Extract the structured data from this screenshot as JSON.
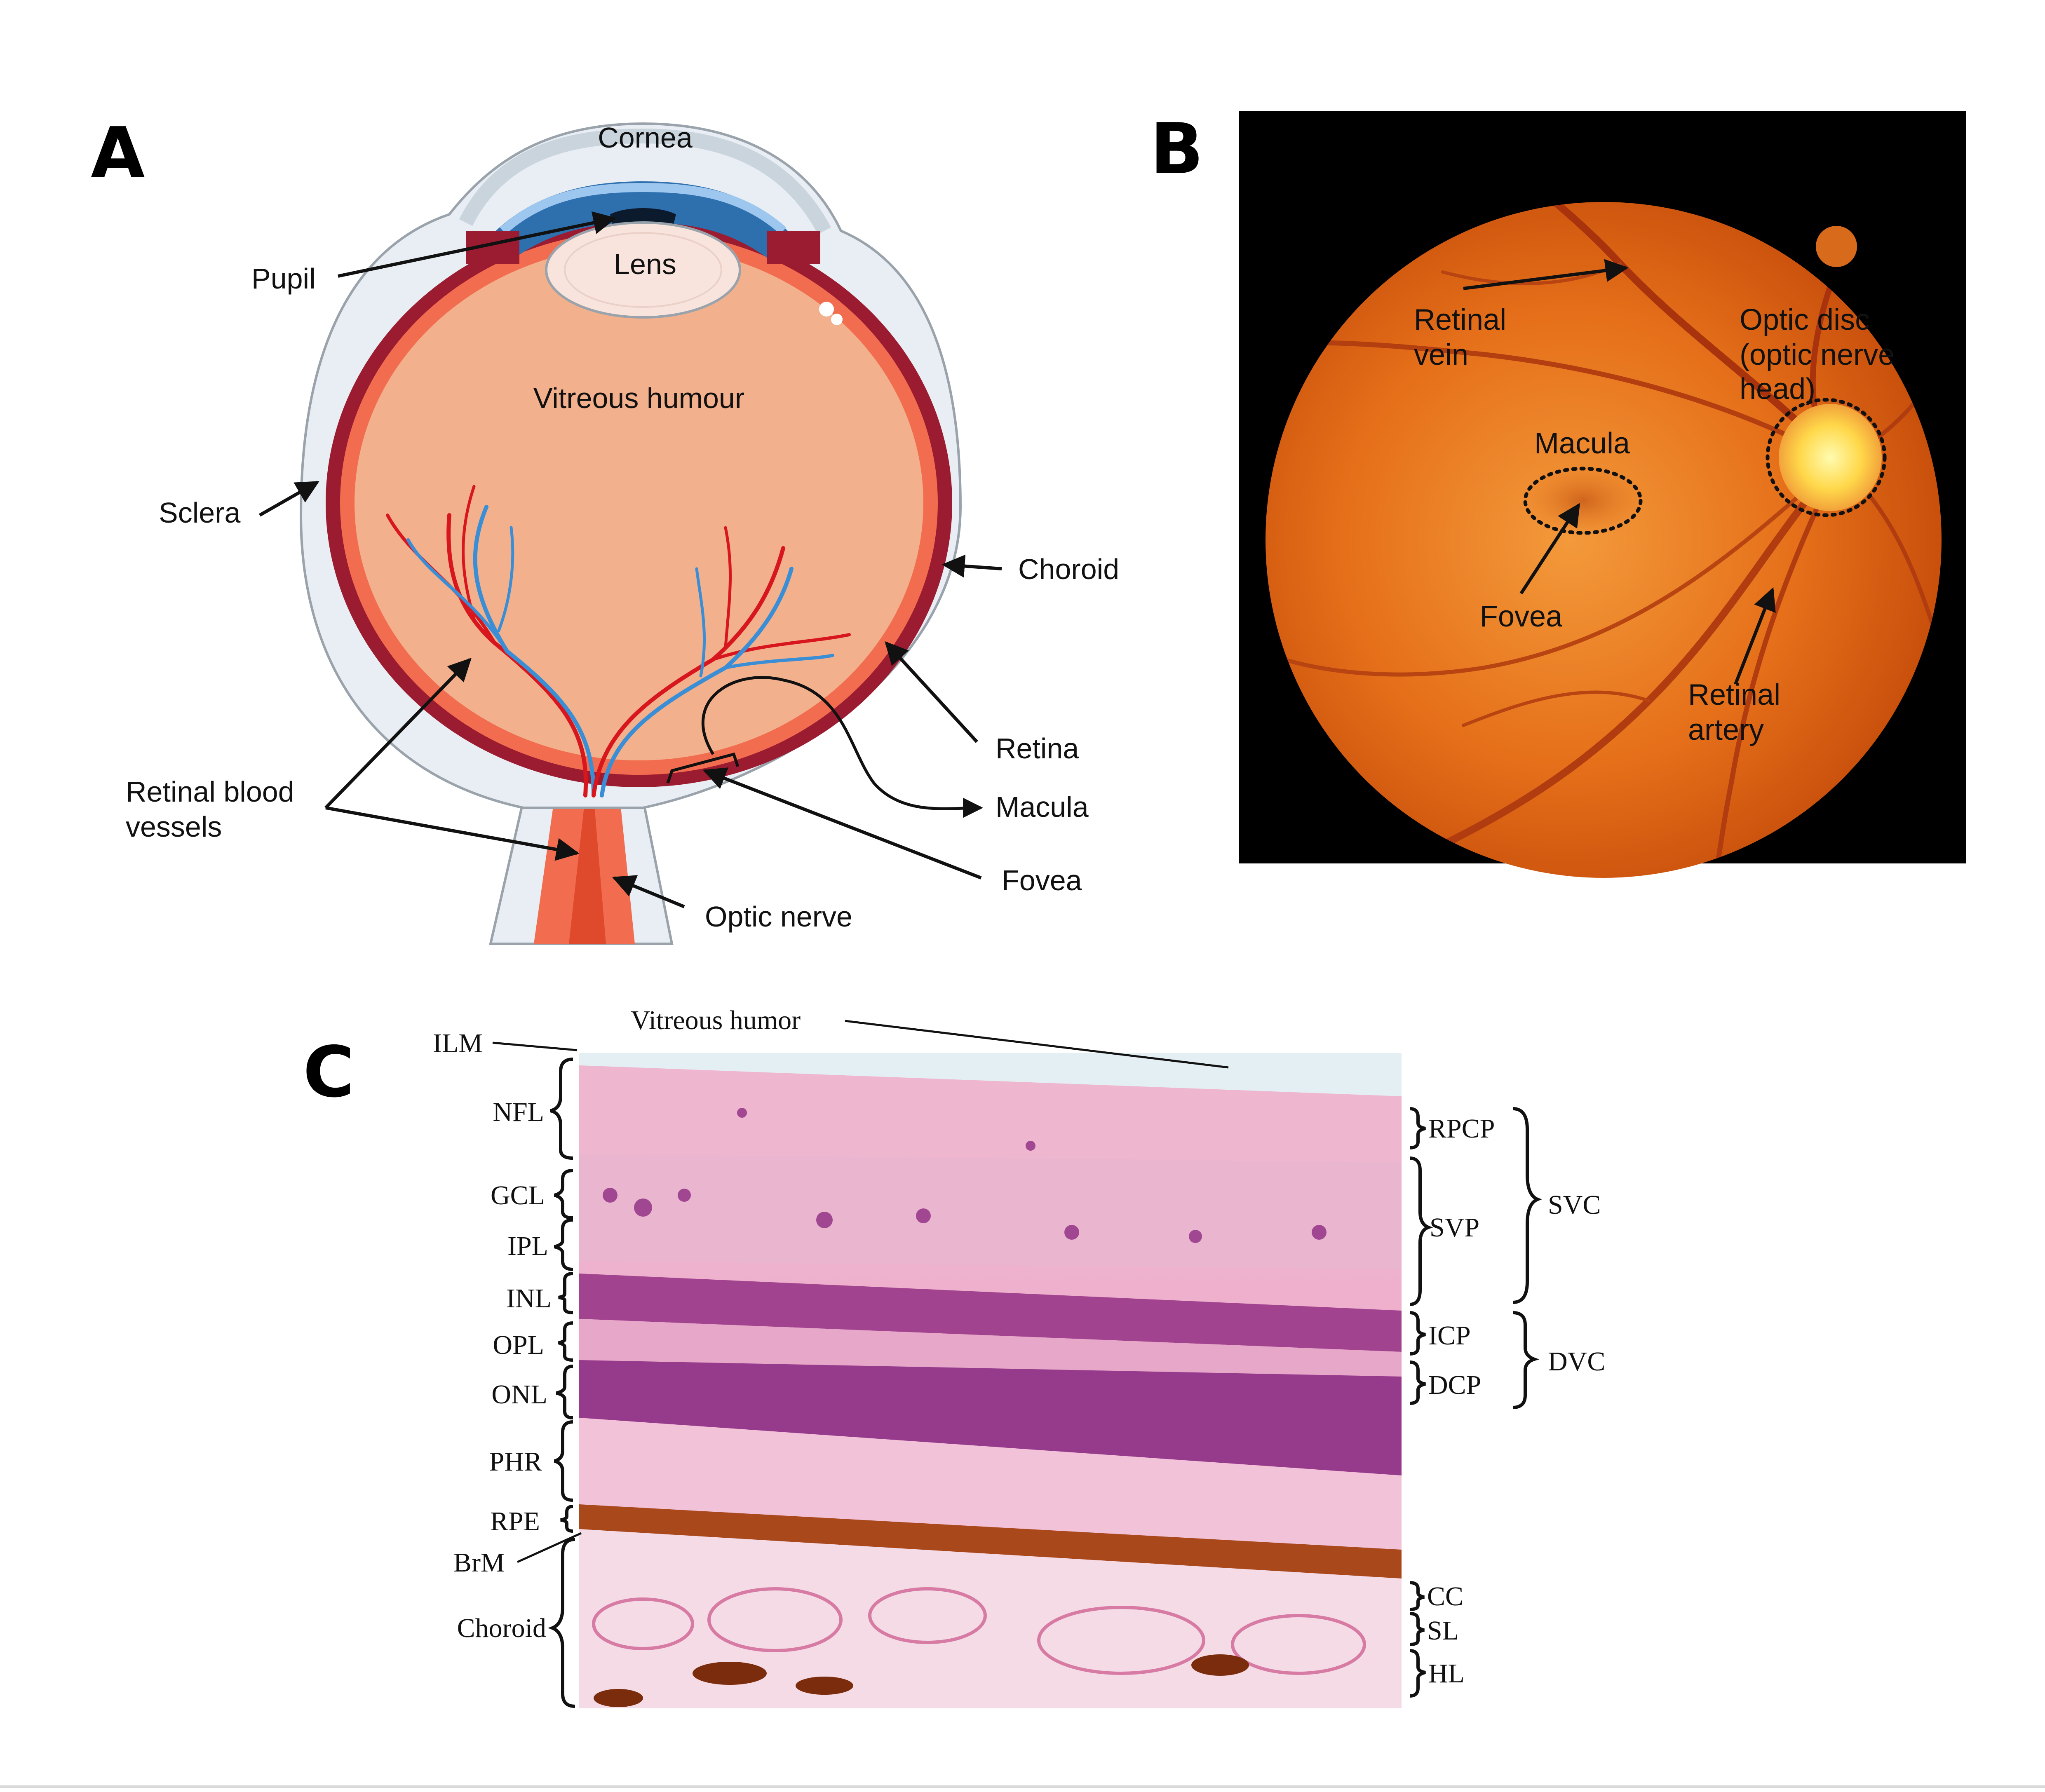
{
  "panels": {
    "a": {
      "letter": "A",
      "labels": {
        "cornea": "Cornea",
        "pupil": "Pupil",
        "lens": "Lens",
        "vitreous": "Vitreous humour",
        "sclera": "Sclera",
        "choroid": "Choroid",
        "retina": "Retina",
        "vessels_1": "Retinal blood",
        "vessels_2": "vessels",
        "macula": "Macula",
        "fovea": "Fovea",
        "optic_nerve": "Optic nerve"
      }
    },
    "b": {
      "letter": "B",
      "labels": {
        "vein_1": "Retinal",
        "vein_2": "vein",
        "disc_1": "Optic disc",
        "disc_2": "(optic nerve",
        "disc_3": "head)",
        "macula": "Macula",
        "fovea": "Fovea",
        "artery_1": "Retinal",
        "artery_2": "artery"
      }
    },
    "c": {
      "letter": "C",
      "top_labels": {
        "vitreous": "Vitreous humor",
        "ilm": "ILM",
        "brm": "BrM"
      },
      "left_layers": [
        "NFL",
        "GCL",
        "IPL",
        "INL",
        "OPL",
        "ONL",
        "PHR",
        "RPE",
        "Choroid"
      ],
      "right_plexuses": [
        "RPCP",
        "SVP",
        "ICP",
        "DCP",
        "CC",
        "SL",
        "HL"
      ],
      "groups": [
        "SVC",
        "DVC"
      ]
    }
  },
  "colors": {
    "arrow": "#111111",
    "sclera": "#e8eef3",
    "choroid": "#9b1b30",
    "retina": "#f26d4f",
    "vitreous": "#f2b08c",
    "lens": "#f8e4dc",
    "artery": "#d8161e",
    "vein": "#3a8ed6",
    "fundus": "#e2650f",
    "fundus_center": "#f08a2a",
    "optic_disc": "#fff27a",
    "histology": "#e9a2c4",
    "nuclei": "#8e2c82",
    "rpe": "#b14a1a"
  }
}
